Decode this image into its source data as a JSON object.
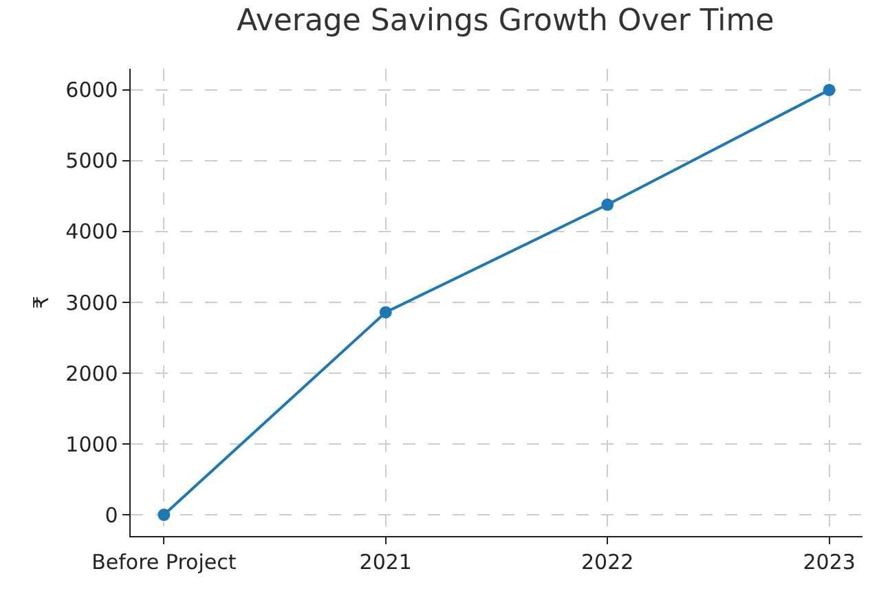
{
  "chart_data": {
    "type": "line",
    "title": "Average Savings Growth Over Time",
    "ylabel": "₹",
    "categories": [
      "Before Project",
      "2021",
      "2022",
      "2023"
    ],
    "series": [
      {
        "color": "#1f77b4",
        "values": [
          0,
          2860,
          4380,
          6000
        ]
      }
    ],
    "ylim": [
      -300,
      6300
    ],
    "yticks": [
      0,
      1000,
      2000,
      3000,
      4000,
      5000,
      6000
    ],
    "grid": true,
    "marker": "circle",
    "line_style": "solid"
  }
}
